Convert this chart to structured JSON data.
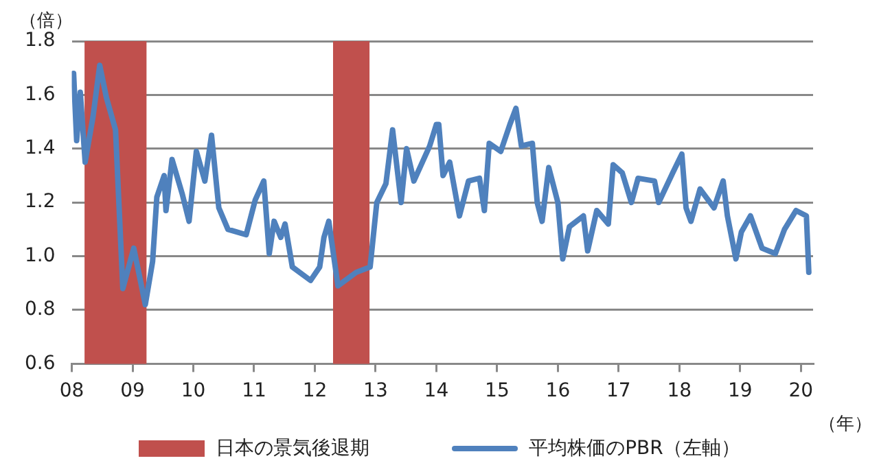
{
  "chart_data": {
    "type": "line",
    "ylabel": "（倍）",
    "xlabel": "（年）",
    "xlim": [
      2008,
      2020.2
    ],
    "xticks": [
      {
        "value": 2008,
        "label": "08"
      },
      {
        "value": 2009,
        "label": "09"
      },
      {
        "value": 2010,
        "label": "10"
      },
      {
        "value": 2011,
        "label": "11"
      },
      {
        "value": 2012,
        "label": "12"
      },
      {
        "value": 2013,
        "label": "13"
      },
      {
        "value": 2014,
        "label": "14"
      },
      {
        "value": 2015,
        "label": "15"
      },
      {
        "value": 2016,
        "label": "16"
      },
      {
        "value": 2017,
        "label": "17"
      },
      {
        "value": 2018,
        "label": "18"
      },
      {
        "value": 2019,
        "label": "19"
      },
      {
        "value": 2020,
        "label": "20"
      }
    ],
    "ylim": [
      0.6,
      1.8
    ],
    "yticks": [
      0.6,
      0.8,
      {
        "value": 1,
        "label": "1.0"
      },
      1.2,
      1.4,
      1.6,
      1.8
    ],
    "grid": "y",
    "legend": "bottom",
    "bands": [
      {
        "axis": "x",
        "from": 2008.21,
        "to": 2009.23,
        "label": "日本の景気後退期",
        "color": "#c0504d"
      },
      {
        "axis": "x",
        "from": 2012.3,
        "to": 2012.9,
        "color": "#c0504d"
      }
    ],
    "series": [
      {
        "name": "平均株価のPBR（左軸）",
        "color": "#4f81bd",
        "x": [
          2008.03,
          2008.08,
          2008.14,
          2008.22,
          2008.35,
          2008.46,
          2008.57,
          2008.72,
          2008.84,
          2009.02,
          2009.21,
          2009.33,
          2009.4,
          2009.52,
          2009.55,
          2009.65,
          2009.82,
          2009.93,
          2010.05,
          2010.19,
          2010.3,
          2010.42,
          2010.57,
          2010.87,
          2011.02,
          2011.16,
          2011.25,
          2011.33,
          2011.44,
          2011.51,
          2011.63,
          2011.93,
          2012.08,
          2012.15,
          2012.23,
          2012.38,
          2012.68,
          2012.91,
          2013.02,
          2013.17,
          2013.28,
          2013.42,
          2013.51,
          2013.63,
          2013.89,
          2014,
          2014.04,
          2014.11,
          2014.22,
          2014.38,
          2014.53,
          2014.71,
          2014.79,
          2014.87,
          2015.06,
          2015.21,
          2015.31,
          2015.4,
          2015.58,
          2015.66,
          2015.74,
          2015.85,
          2016,
          2016.08,
          2016.19,
          2016.42,
          2016.49,
          2016.64,
          2016.83,
          2016.91,
          2017.06,
          2017.21,
          2017.32,
          2017.59,
          2017.66,
          2017.89,
          2018.04,
          2018.11,
          2018.19,
          2018.34,
          2018.57,
          2018.72,
          2018.79,
          2018.93,
          2019.02,
          2019.17,
          2019.36,
          2019.58,
          2019.73,
          2019.92,
          2020.09,
          2020.13
        ],
        "values": [
          1.68,
          1.43,
          1.61,
          1.35,
          1.52,
          1.71,
          1.59,
          1.47,
          0.88,
          1.03,
          0.82,
          0.98,
          1.22,
          1.3,
          1.17,
          1.36,
          1.23,
          1.13,
          1.39,
          1.28,
          1.45,
          1.18,
          1.1,
          1.08,
          1.21,
          1.28,
          1.01,
          1.13,
          1.07,
          1.12,
          0.96,
          0.91,
          0.96,
          1.07,
          1.13,
          0.89,
          0.94,
          0.96,
          1.2,
          1.27,
          1.47,
          1.2,
          1.4,
          1.28,
          1.41,
          1.49,
          1.49,
          1.3,
          1.35,
          1.15,
          1.28,
          1.29,
          1.17,
          1.42,
          1.39,
          1.49,
          1.55,
          1.41,
          1.42,
          1.2,
          1.13,
          1.33,
          1.2,
          0.99,
          1.11,
          1.15,
          1.02,
          1.17,
          1.12,
          1.34,
          1.31,
          1.2,
          1.29,
          1.28,
          1.2,
          1.31,
          1.38,
          1.18,
          1.13,
          1.25,
          1.18,
          1.28,
          1.15,
          0.99,
          1.09,
          1.15,
          1.03,
          1.01,
          1.1,
          1.17,
          1.15,
          0.94
        ]
      }
    ]
  }
}
